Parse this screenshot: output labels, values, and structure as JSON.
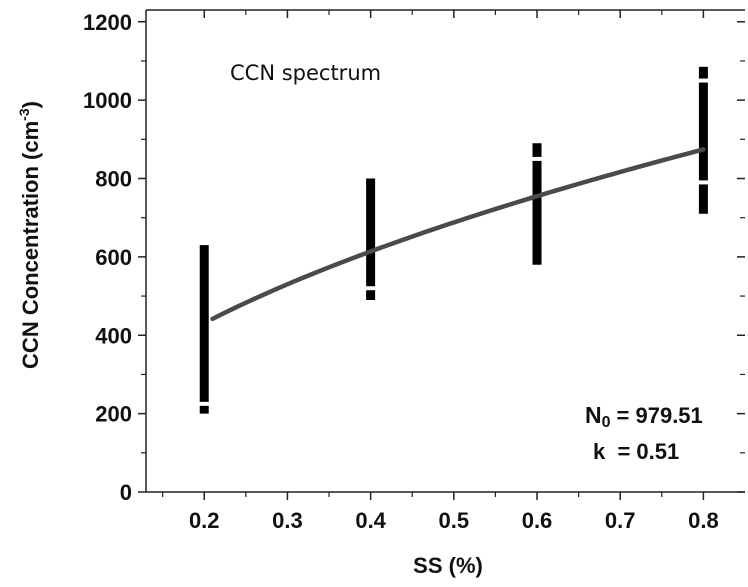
{
  "chart_data": {
    "type": "scatter",
    "title": "CCN spectrum",
    "xlabel": "SS (%)",
    "ylabel": {
      "base": "CCN Concentration (cm",
      "sup": "-3",
      "close": ")"
    },
    "xlim": [
      0.13,
      0.85
    ],
    "ylim": [
      0,
      1230
    ],
    "xticks": [
      "0.2",
      "0.3",
      "0.4",
      "0.5",
      "0.6",
      "0.7",
      "0.8"
    ],
    "yticks": [
      "0",
      "200",
      "400",
      "600",
      "800",
      "1000",
      "1200"
    ],
    "grid": false,
    "observations": [
      {
        "x": 0.2,
        "ymin": 200,
        "ymax": 630,
        "gaps": [
          225
        ]
      },
      {
        "x": 0.4,
        "ymin": 490,
        "ymax": 800,
        "gaps": [
          520
        ]
      },
      {
        "x": 0.6,
        "ymin": 580,
        "ymax": 890,
        "gaps": [
          850
        ]
      },
      {
        "x": 0.8,
        "ymin": 710,
        "ymax": 1085,
        "gaps": [
          1050,
          790
        ]
      }
    ],
    "fit": {
      "formula": "N = N0 * SS^k",
      "N0": 979.51,
      "k": 0.51,
      "x_start": 0.21,
      "x_end": 0.8
    },
    "annotations": {
      "n0_symbol": "N",
      "n0_sub": "0",
      "n0_value": "= 979.51",
      "k_text": "k  = 0.51"
    }
  }
}
